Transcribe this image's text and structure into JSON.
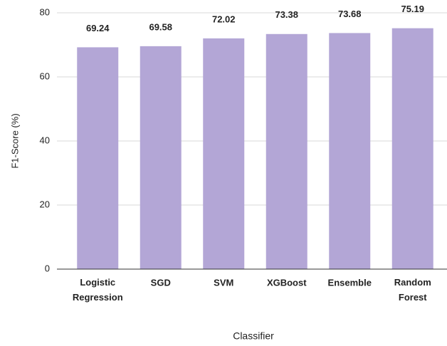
{
  "chart_data": {
    "type": "bar",
    "categories": [
      "Logistic Regression",
      "SGD",
      "SVM",
      "XGBoost",
      "Ensemble",
      "Random Forest"
    ],
    "values": [
      69.24,
      69.58,
      72.02,
      73.38,
      73.68,
      75.19
    ],
    "color": "#b3a6d6",
    "x_label": "Classifier",
    "y_label": "F1-Score (%)",
    "ylim": [
      0,
      80
    ],
    "yticks": [
      0,
      20,
      40,
      60,
      80
    ],
    "grid": true
  }
}
